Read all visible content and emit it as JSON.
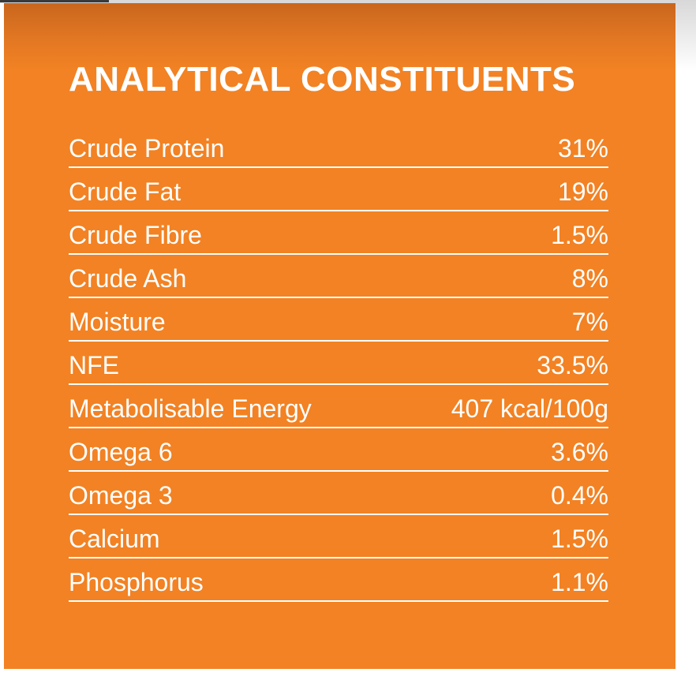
{
  "title": "ANALYTICAL CONSTITUENTS",
  "rows": [
    {
      "label": "Crude Protein",
      "value": "31%"
    },
    {
      "label": "Crude Fat",
      "value": "19%"
    },
    {
      "label": "Crude Fibre",
      "value": "1.5%"
    },
    {
      "label": "Crude Ash",
      "value": "8%"
    },
    {
      "label": "Moisture",
      "value": "7%"
    },
    {
      "label": "NFE",
      "value": "33.5%"
    },
    {
      "label": "Metabolisable Energy",
      "value": "407 kcal/100g"
    },
    {
      "label": "Omega 6",
      "value": "3.6%"
    },
    {
      "label": "Omega 3",
      "value": "0.4%"
    },
    {
      "label": "Calcium",
      "value": "1.5%"
    },
    {
      "label": "Phosphorus",
      "value": "1.1%"
    }
  ],
  "colors": {
    "panel": "#f28223",
    "text": "#ffffff"
  }
}
